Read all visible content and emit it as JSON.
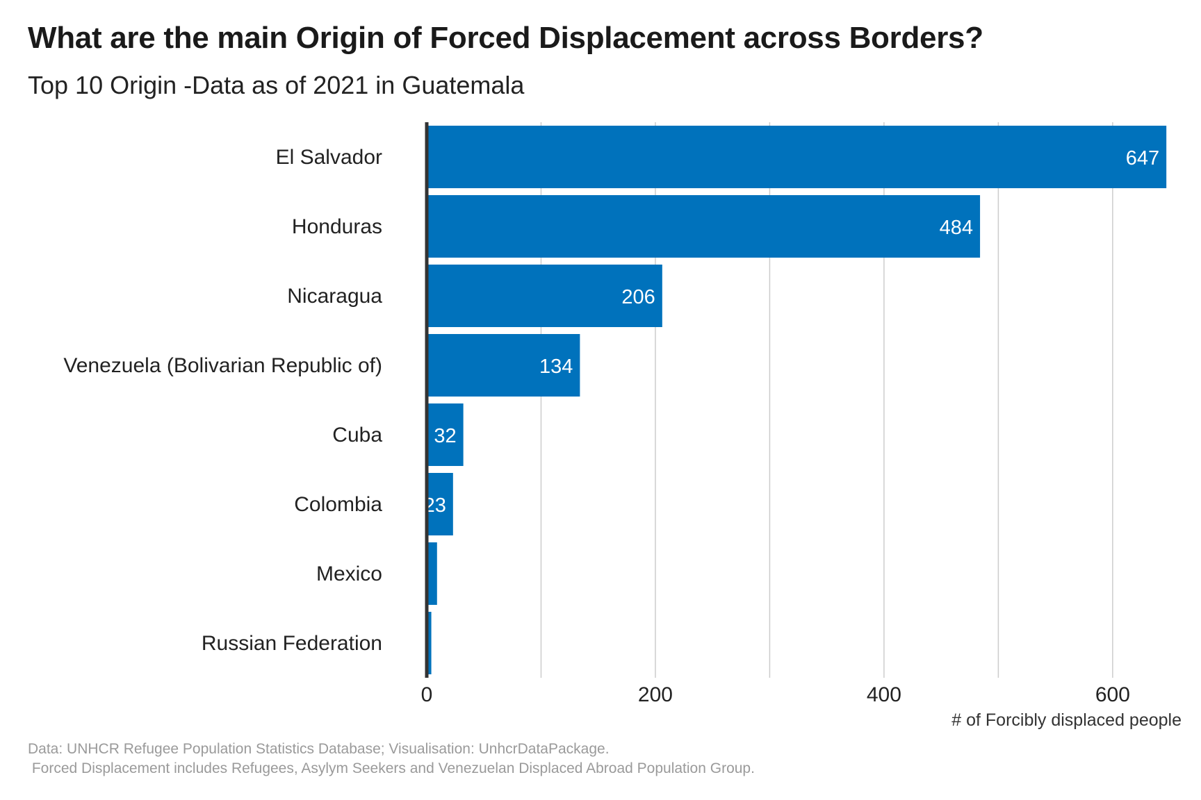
{
  "title": "What are the main Origin of Forced Displacement across Borders?",
  "subtitle": "Top 10 Origin -Data as of 2021  in Guatemala",
  "caption_line1": "Data: UNHCR Refugee Population Statistics Database; Visualisation: UnhcrDataPackage.",
  "caption_line2": " Forced Displacement includes Refugees, Asylym Seekers and Venezuelan Displaced Abroad Population Group.",
  "colors": {
    "bar": "#0072BC",
    "axis": "#333333",
    "grid": "#cccccc",
    "label_inside": "#ffffff"
  },
  "chart_data": {
    "type": "bar",
    "orientation": "horizontal",
    "categories": [
      "El Salvador",
      "Honduras",
      "Nicaragua",
      "Venezuela (Bolivarian Republic of)",
      "Cuba",
      "Colombia",
      "Mexico",
      "Russian Federation"
    ],
    "values": [
      647,
      484,
      206,
      134,
      32,
      23,
      9,
      4
    ],
    "data_labels": [
      "647",
      "484",
      "206",
      "134",
      "32",
      "23",
      "",
      ""
    ],
    "xlabel": "# of Forcibly displaced people",
    "ylabel": "",
    "xlim": [
      0,
      670
    ],
    "x_ticks": [
      0,
      200,
      400,
      600
    ],
    "x_tick_labels": [
      "0",
      "200",
      "400",
      "600"
    ],
    "grid": "vertical",
    "legend": "none"
  }
}
